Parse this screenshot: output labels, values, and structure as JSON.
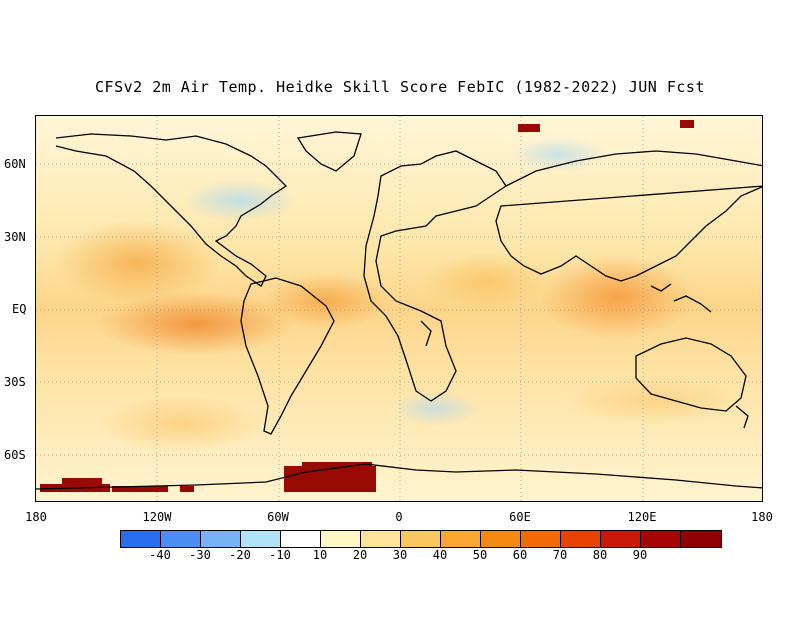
{
  "title": "CFSv2 2m Air Temp. Heidke Skill Score FebIC (1982-2022) JUN Fcst",
  "map": {
    "lat_labels": [
      "60N",
      "30N",
      "EQ",
      "30S",
      "60S"
    ],
    "lon_labels": [
      "180",
      "120W",
      "60W",
      "0",
      "60E",
      "120E",
      "180"
    ]
  },
  "colorbar": {
    "colors": [
      "#2a6ef0",
      "#4d8ef5",
      "#78b2f6",
      "#b0e2f8",
      "#ffffff",
      "#fff8c4",
      "#fde49a",
      "#fbc560",
      "#f8a830",
      "#f58a12",
      "#f26a08",
      "#e84304",
      "#c81808",
      "#a80404",
      "#900000"
    ],
    "labels": [
      "-40",
      "-30",
      "-20",
      "-10",
      "10",
      "20",
      "30",
      "40",
      "50",
      "60",
      "70",
      "80",
      "90"
    ]
  }
}
